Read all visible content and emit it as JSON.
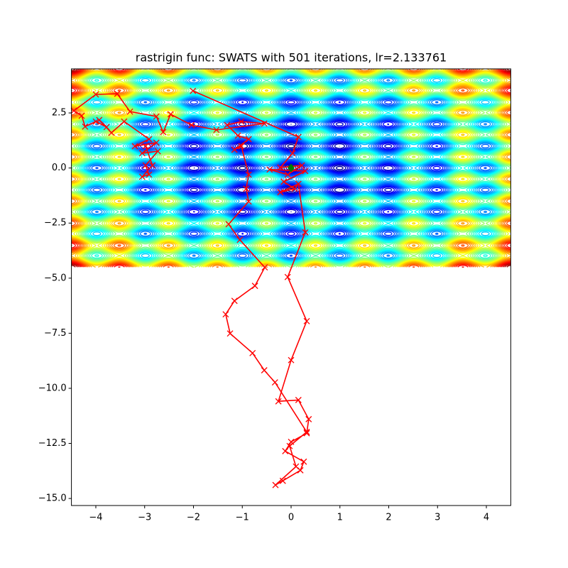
{
  "chart_data": {
    "type": "contour-path",
    "title": "rastrigin func: SWATS with 501 iterations, lr=2.133761",
    "xlim": [
      -4.5,
      4.5
    ],
    "ylim": [
      -15.32,
      4.5
    ],
    "xticks": [
      {
        "value": -4,
        "label": "−4"
      },
      {
        "value": -3,
        "label": "−3"
      },
      {
        "value": -2,
        "label": "−2"
      },
      {
        "value": -1,
        "label": "−1"
      },
      0,
      1,
      2,
      3,
      4
    ],
    "yticks": [
      {
        "value": -15,
        "label": "−15.0"
      },
      {
        "value": -12.5,
        "label": "−12.5"
      },
      {
        "value": -10,
        "label": "−10.0"
      },
      {
        "value": -7.5,
        "label": "−7.5"
      },
      {
        "value": -5,
        "label": "−5.0"
      },
      {
        "value": -2.5,
        "label": "−2.5"
      },
      {
        "value": 0,
        "label": "0.0"
      },
      2.5
    ],
    "contour": {
      "xlim": [
        -4.5,
        4.5
      ],
      "ylim": [
        -4.5,
        4.5
      ],
      "levels": 40,
      "colormap": "jet"
    },
    "series": [
      {
        "color": "red",
        "marker": "x",
        "x": [
          -2.01,
          0.15,
          0.03,
          -0.22,
          0.22,
          -0.07,
          -0.44,
          0.29,
          -0.15,
          0.07,
          -0.22,
          0.15,
          0.29,
          -0.07,
          0.32,
          0.0,
          -0.26,
          0.15,
          0.36,
          0.32,
          0.0,
          -0.12,
          0.26,
          0.19,
          -0.17,
          -0.32,
          0.1,
          -0.03,
          0.32,
          -0.33,
          -0.55,
          -0.79,
          -1.25,
          -1.34,
          -1.16,
          -0.74,
          -0.54,
          -1.05,
          -1.28,
          -0.87,
          -0.92,
          -0.87,
          -1.02,
          -1.16,
          -0.87,
          -1.09,
          -1.31,
          -1.02,
          -0.55,
          -1.53,
          -2.04,
          -2.47,
          -2.62,
          -2.76,
          -3.3,
          -3.56,
          -4.0,
          -4.45,
          -4.29,
          -4.22,
          -4.0,
          -3.78,
          -3.93,
          -3.68,
          -3.42,
          -2.91,
          -3.2,
          -2.76,
          -3.05,
          -2.73,
          -2.98,
          -2.91,
          -3.05,
          -2.84,
          -2.98
        ],
        "y": [
          3.5,
          1.41,
          0.67,
          0.02,
          0.12,
          -0.3,
          -0.07,
          -0.14,
          -0.62,
          -0.94,
          -1.1,
          -0.72,
          -2.92,
          -4.95,
          -6.95,
          -8.72,
          -10.59,
          -10.53,
          -11.4,
          -12.04,
          -12.43,
          -12.85,
          -13.33,
          -13.72,
          -14.2,
          -14.39,
          -13.55,
          -12.62,
          -11.98,
          -9.73,
          -9.18,
          -8.4,
          -7.51,
          -6.64,
          -6.03,
          -5.35,
          -4.51,
          -3.26,
          -2.55,
          -1.52,
          -0.94,
          -0.3,
          0.99,
          0.83,
          1.31,
          1.47,
          1.95,
          2.11,
          2.02,
          1.73,
          1.95,
          2.44,
          1.63,
          2.34,
          2.56,
          3.37,
          3.34,
          2.6,
          2.37,
          1.88,
          2.11,
          1.86,
          2.18,
          1.6,
          2.11,
          1.31,
          0.99,
          1.15,
          0.67,
          0.76,
          0.12,
          -0.3,
          -0.4,
          0.12,
          0.99
        ]
      },
      {
        "color": "green",
        "marker": "D",
        "x": [
          0
        ],
        "y": [
          0
        ]
      }
    ]
  }
}
